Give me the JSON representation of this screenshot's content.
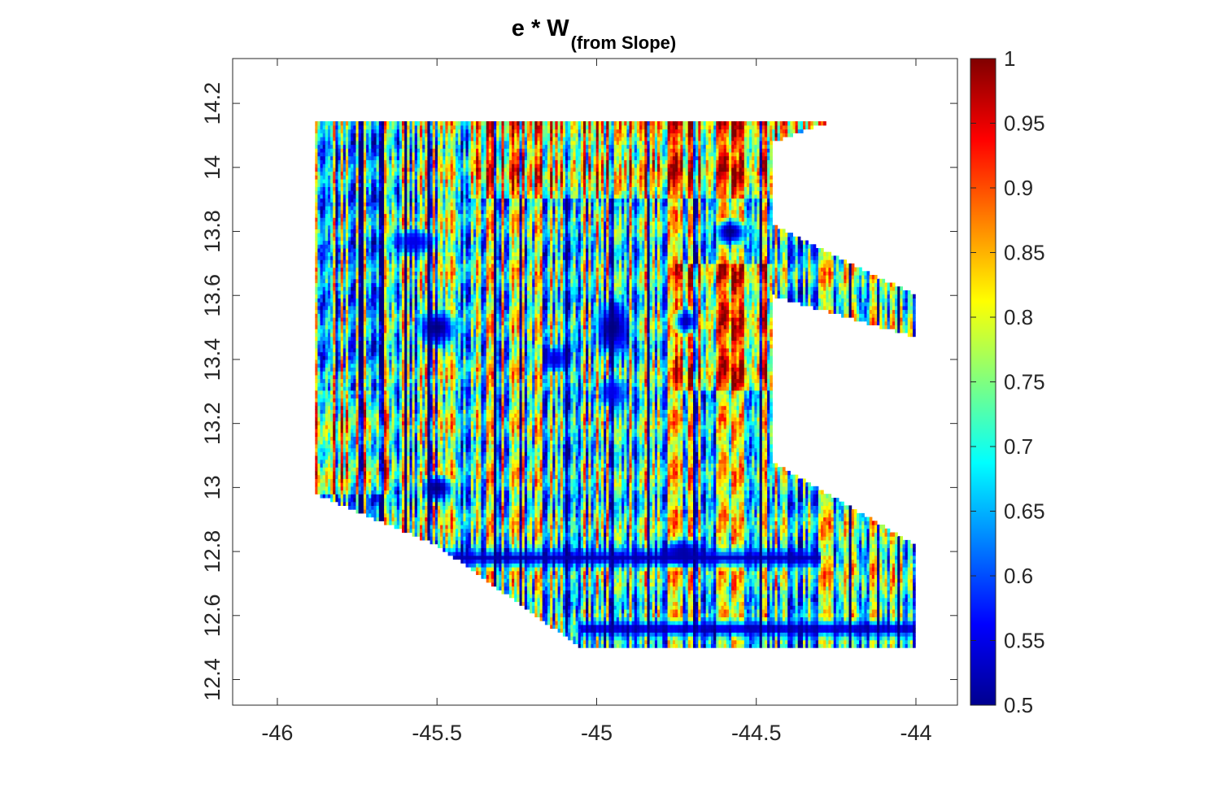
{
  "chart_data": {
    "type": "heatmap",
    "title": "e * W",
    "title_subscript": "(from Slope)",
    "xlabel": "",
    "ylabel": "",
    "xlim": [
      -46.14,
      -43.87
    ],
    "ylim": [
      12.32,
      14.34
    ],
    "x_ticks": [
      -46,
      -45.5,
      -45,
      -44.5,
      -44
    ],
    "x_tick_labels": [
      "-46",
      "-45.5",
      "-45",
      "-44.5",
      "-44"
    ],
    "y_ticks": [
      12.4,
      12.6,
      12.8,
      13,
      13.2,
      13.4,
      13.6,
      13.8,
      14,
      14.2
    ],
    "y_tick_labels": [
      "12.4",
      "12.6",
      "12.8",
      "13",
      "13.2",
      "13.4",
      "13.6",
      "13.8",
      "14",
      "14.2"
    ],
    "colorbar": {
      "colormap": "jet",
      "clim": [
        0.5,
        1
      ],
      "ticks": [
        0.5,
        0.55,
        0.6,
        0.65,
        0.7,
        0.75,
        0.8,
        0.85,
        0.9,
        0.95,
        1
      ],
      "tick_labels": [
        "0.5",
        "0.55",
        "0.6",
        "0.65",
        "0.7",
        "0.75",
        "0.8",
        "0.85",
        "0.9",
        "0.95",
        "1"
      ]
    },
    "data_region": {
      "outline": [
        [
          -45.88,
          14.15
        ],
        [
          -44.25,
          14.15
        ],
        [
          -44.45,
          14.08
        ],
        [
          -44.45,
          13.82
        ],
        [
          -44.0,
          13.6
        ],
        [
          -44.0,
          13.47
        ],
        [
          -44.45,
          13.6
        ],
        [
          -44.45,
          13.08
        ],
        [
          -44.0,
          12.82
        ],
        [
          -44.0,
          12.5
        ],
        [
          -45.05,
          12.5
        ],
        [
          -45.5,
          12.82
        ],
        [
          -45.88,
          12.98
        ]
      ],
      "holes": [
        [
          [
            -44.0,
            13.25
          ],
          [
            -44.0,
            12.89
          ],
          [
            -44.25,
            13.05
          ]
        ]
      ],
      "vertical_streak_pattern": true,
      "low_value_blobs": [
        {
          "x": -45.5,
          "y": 13.5,
          "rx": 0.08,
          "ry": 0.07,
          "value": 0.5
        },
        {
          "x": -44.95,
          "y": 13.5,
          "rx": 0.07,
          "ry": 0.1,
          "value": 0.5
        },
        {
          "x": -45.5,
          "y": 13.0,
          "rx": 0.06,
          "ry": 0.05,
          "value": 0.5
        },
        {
          "x": -44.58,
          "y": 13.8,
          "rx": 0.06,
          "ry": 0.05,
          "value": 0.5
        },
        {
          "x": -44.72,
          "y": 13.52,
          "rx": 0.05,
          "ry": 0.05,
          "value": 0.52
        },
        {
          "x": -45.13,
          "y": 13.4,
          "rx": 0.05,
          "ry": 0.05,
          "value": 0.54
        },
        {
          "x": -45.57,
          "y": 13.77,
          "rx": 0.08,
          "ry": 0.05,
          "value": 0.55
        },
        {
          "x": -44.73,
          "y": 12.8,
          "rx": 0.08,
          "ry": 0.05,
          "value": 0.52
        },
        {
          "x": -44.95,
          "y": 13.3,
          "rx": 0.05,
          "ry": 0.06,
          "value": 0.55
        }
      ],
      "low_value_bands": [
        {
          "y": 12.78,
          "x_from": -45.6,
          "x_to": -44.3,
          "value": 0.52
        },
        {
          "y": 12.56,
          "x_from": -45.05,
          "x_to": -44.0,
          "value": 0.5
        }
      ],
      "high_value_zones": [
        {
          "x_from": -45.88,
          "x_to": -45.65,
          "y_from": 12.98,
          "y_to": 13.3
        },
        {
          "x_from": -44.75,
          "x_to": -44.45,
          "y_from": 13.3,
          "y_to": 13.7
        },
        {
          "x_from": -45.4,
          "x_to": -44.3,
          "y_from": 13.9,
          "y_to": 14.15
        }
      ]
    }
  }
}
